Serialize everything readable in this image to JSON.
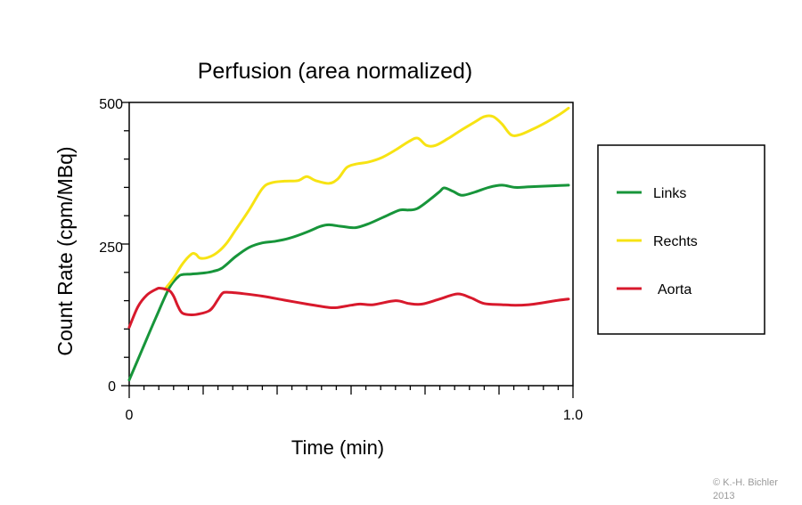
{
  "chart_data": {
    "type": "line",
    "title": "Perfusion (area normalized)",
    "xlabel": "Time (min)",
    "ylabel": "Count Rate (cpm/MBq)",
    "xlim": [
      0,
      1.0
    ],
    "ylim": [
      0,
      500
    ],
    "x_tick_labels": [
      "0",
      "1.0"
    ],
    "y_tick_labels": [
      "0",
      "250",
      "500"
    ],
    "grid": false,
    "legend_position": "right",
    "series": [
      {
        "name": "Links",
        "color": "#17953a",
        "points": [
          [
            0.0,
            10
          ],
          [
            0.03,
            65
          ],
          [
            0.06,
            120
          ],
          [
            0.09,
            172
          ],
          [
            0.11,
            192
          ],
          [
            0.12,
            196
          ],
          [
            0.14,
            197
          ],
          [
            0.17,
            199
          ],
          [
            0.19,
            202
          ],
          [
            0.21,
            208
          ],
          [
            0.24,
            228
          ],
          [
            0.27,
            244
          ],
          [
            0.3,
            252
          ],
          [
            0.33,
            255
          ],
          [
            0.36,
            260
          ],
          [
            0.4,
            271
          ],
          [
            0.43,
            281
          ],
          [
            0.45,
            284
          ],
          [
            0.48,
            281
          ],
          [
            0.51,
            279
          ],
          [
            0.54,
            286
          ],
          [
            0.58,
            300
          ],
          [
            0.61,
            310
          ],
          [
            0.63,
            310
          ],
          [
            0.65,
            313
          ],
          [
            0.68,
            330
          ],
          [
            0.7,
            343
          ],
          [
            0.71,
            349
          ],
          [
            0.73,
            343
          ],
          [
            0.75,
            336
          ],
          [
            0.78,
            342
          ],
          [
            0.81,
            350
          ],
          [
            0.84,
            354
          ],
          [
            0.87,
            350
          ],
          [
            0.9,
            351
          ],
          [
            0.93,
            352
          ],
          [
            0.96,
            353
          ],
          [
            0.99,
            354
          ]
        ]
      },
      {
        "name": "Rechts",
        "color": "#f7e313",
        "points": [
          [
            0.08,
            170
          ],
          [
            0.1,
            190
          ],
          [
            0.12,
            215
          ],
          [
            0.14,
            232
          ],
          [
            0.15,
            232
          ],
          [
            0.16,
            225
          ],
          [
            0.18,
            227
          ],
          [
            0.2,
            236
          ],
          [
            0.22,
            252
          ],
          [
            0.24,
            275
          ],
          [
            0.27,
            310
          ],
          [
            0.3,
            348
          ],
          [
            0.32,
            358
          ],
          [
            0.35,
            361
          ],
          [
            0.38,
            362
          ],
          [
            0.4,
            369
          ],
          [
            0.42,
            362
          ],
          [
            0.45,
            357
          ],
          [
            0.47,
            365
          ],
          [
            0.49,
            385
          ],
          [
            0.51,
            391
          ],
          [
            0.54,
            395
          ],
          [
            0.57,
            403
          ],
          [
            0.6,
            416
          ],
          [
            0.63,
            431
          ],
          [
            0.65,
            437
          ],
          [
            0.67,
            424
          ],
          [
            0.69,
            424
          ],
          [
            0.72,
            437
          ],
          [
            0.75,
            452
          ],
          [
            0.78,
            466
          ],
          [
            0.8,
            475
          ],
          [
            0.82,
            475
          ],
          [
            0.84,
            462
          ],
          [
            0.86,
            443
          ],
          [
            0.88,
            443
          ],
          [
            0.91,
            453
          ],
          [
            0.94,
            465
          ],
          [
            0.97,
            479
          ],
          [
            0.99,
            490
          ]
        ]
      },
      {
        "name": "Aorta",
        "color": "#d8192c",
        "points": [
          [
            0.0,
            103
          ],
          [
            0.02,
            140
          ],
          [
            0.04,
            160
          ],
          [
            0.06,
            170
          ],
          [
            0.07,
            172
          ],
          [
            0.09,
            168
          ],
          [
            0.1,
            158
          ],
          [
            0.11,
            140
          ],
          [
            0.12,
            128
          ],
          [
            0.14,
            125
          ],
          [
            0.16,
            127
          ],
          [
            0.18,
            132
          ],
          [
            0.19,
            140
          ],
          [
            0.2,
            152
          ],
          [
            0.21,
            163
          ],
          [
            0.22,
            165
          ],
          [
            0.25,
            163
          ],
          [
            0.3,
            158
          ],
          [
            0.35,
            151
          ],
          [
            0.4,
            144
          ],
          [
            0.45,
            138
          ],
          [
            0.47,
            138
          ],
          [
            0.5,
            142
          ],
          [
            0.52,
            144
          ],
          [
            0.55,
            143
          ],
          [
            0.6,
            150
          ],
          [
            0.63,
            145
          ],
          [
            0.66,
            144
          ],
          [
            0.7,
            153
          ],
          [
            0.74,
            162
          ],
          [
            0.77,
            155
          ],
          [
            0.8,
            145
          ],
          [
            0.84,
            143
          ],
          [
            0.87,
            142
          ],
          [
            0.9,
            143
          ],
          [
            0.93,
            146
          ],
          [
            0.96,
            150
          ],
          [
            0.99,
            153
          ]
        ]
      }
    ]
  },
  "copyright": {
    "line1": "© K.-H. Bichler",
    "line2": "2013"
  }
}
